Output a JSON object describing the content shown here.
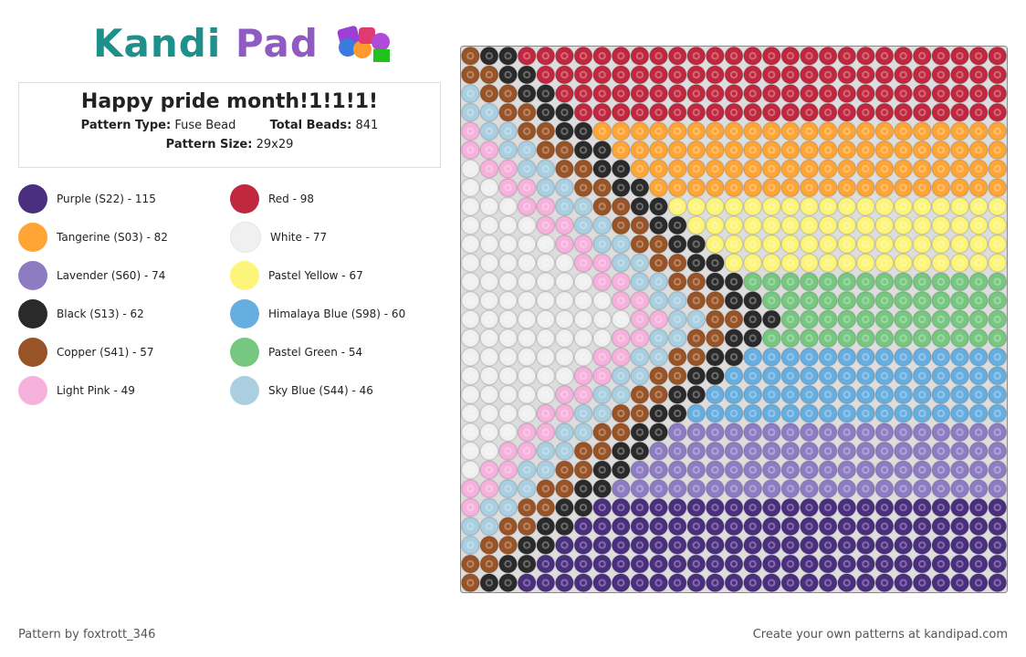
{
  "logo": {
    "first": "Kandi",
    "second": "Pad"
  },
  "title": "Happy pride month!1!1!1!",
  "pattern_type": {
    "label": "Pattern Type:",
    "value": "Fuse Bead"
  },
  "total_beads": {
    "label": "Total Beads:",
    "value": "841"
  },
  "pattern_size": {
    "label": "Pattern Size:",
    "value": "29x29"
  },
  "legend": [
    {
      "text": "Purple (S22) - 115",
      "color": "#4b2f7f"
    },
    {
      "text": "Red - 98",
      "color": "#c0283f"
    },
    {
      "text": "Tangerine (S03) - 82",
      "color": "#ffa535"
    },
    {
      "text": "White - 77",
      "color": "#f0f0f0"
    },
    {
      "text": "Lavender (S60) - 74",
      "color": "#8e7cc3"
    },
    {
      "text": "Pastel Yellow - 67",
      "color": "#fdf57a"
    },
    {
      "text": "Black (S13) - 62",
      "color": "#2a2a2a"
    },
    {
      "text": "Himalaya Blue (S98) - 60",
      "color": "#67aee0"
    },
    {
      "text": "Copper (S41) - 57",
      "color": "#985327"
    },
    {
      "text": "Pastel Green - 54",
      "color": "#76c77f"
    },
    {
      "text": "Light Pink - 49",
      "color": "#f6b2dc"
    },
    {
      "text": "Sky Blue (S44) - 46",
      "color": "#a9cfe0"
    }
  ],
  "footer": {
    "left": "Pattern by foxtrott_346",
    "right": "Create your own patterns at kandipad.com"
  }
}
